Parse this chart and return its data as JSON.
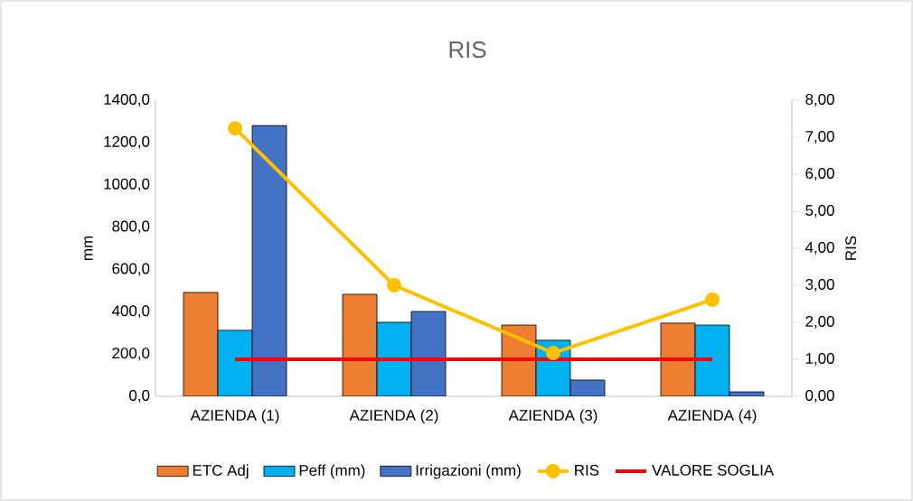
{
  "chart_data": {
    "type": "bar",
    "title": "RIS",
    "ylabel": "mm",
    "y2label": "RIS",
    "categories": [
      "AZIENDA (1)",
      "AZIENDA (2)",
      "AZIENDA (3)",
      "AZIENDA (4)"
    ],
    "series": [
      {
        "name": "ETC Adj",
        "color": "#ed7d31",
        "values": [
          491,
          482,
          337,
          346
        ]
      },
      {
        "name": "Peff (mm)",
        "color": "#00b0f0",
        "values": [
          312,
          350,
          265,
          337
        ]
      },
      {
        "name": "Irrigazioni (mm)",
        "color": "#4472c4",
        "values": [
          1280,
          401,
          77,
          21
        ]
      },
      {
        "name": "RIS",
        "type": "line",
        "axis": "y2",
        "marker": "circle",
        "color": "#ffc000",
        "values": [
          7.24,
          3.0,
          1.17,
          2.61
        ]
      },
      {
        "name": "VALORE SOGLIA",
        "type": "line",
        "axis": "y2",
        "marker": "none",
        "color": "#ff0000",
        "values": [
          1.0,
          1.0,
          1.0,
          1.0
        ]
      }
    ],
    "ylim": [
      0,
      1400
    ],
    "yticks": [
      {
        "value": 0,
        "label": "0,0"
      },
      {
        "value": 200,
        "label": "200,0"
      },
      {
        "value": 400,
        "label": "400,0"
      },
      {
        "value": 600,
        "label": "600,0"
      },
      {
        "value": 800,
        "label": "800,0"
      },
      {
        "value": 1000,
        "label": "1000,0"
      },
      {
        "value": 1200,
        "label": "1200,0"
      },
      {
        "value": 1400,
        "label": "1400,0"
      }
    ],
    "y2lim": [
      0,
      8
    ],
    "y2ticks": [
      {
        "value": 0,
        "label": "0,00"
      },
      {
        "value": 1,
        "label": "1,00"
      },
      {
        "value": 2,
        "label": "2,00"
      },
      {
        "value": 3,
        "label": "3,00"
      },
      {
        "value": 4,
        "label": "4,00"
      },
      {
        "value": 5,
        "label": "5,00"
      },
      {
        "value": 6,
        "label": "6,00"
      },
      {
        "value": 7,
        "label": "7,00"
      },
      {
        "value": 8,
        "label": "8,00"
      }
    ],
    "legend": "bottom",
    "grid": false
  }
}
